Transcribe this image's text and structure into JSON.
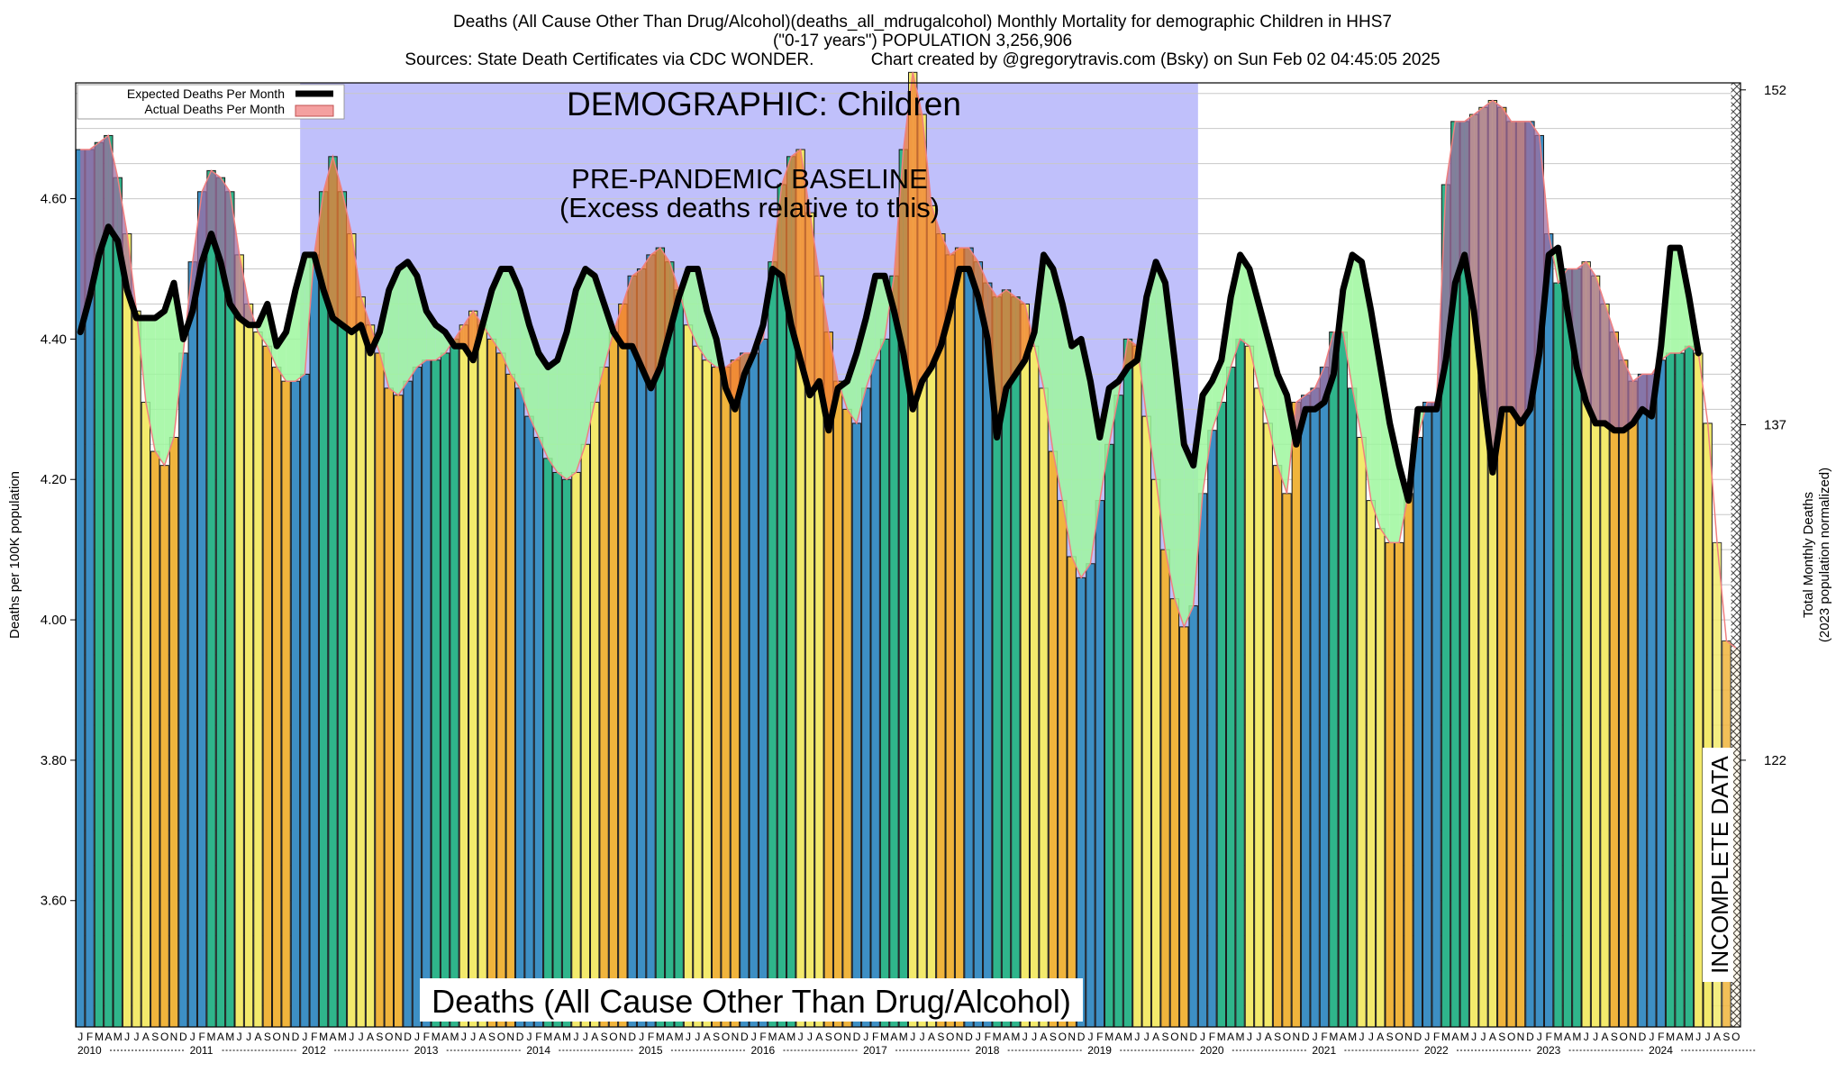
{
  "header": {
    "line1": "Deaths (All Cause Other Than Drug/Alcohol)(deaths_all_mdrugalcohol) Monthly Mortality for demographic Children in HHS7",
    "line2": "(\"0-17 years\") POPULATION 3,256,906",
    "line3": "Sources: State Death Certificates via CDC WONDER.            Chart created by @gregorytravis.com (Bsky) on Sun Feb 02 04:45:05 2025"
  },
  "legend": {
    "expected": "Expected Deaths Per Month",
    "actual": "Actual Deaths Per Month"
  },
  "annotations": {
    "demographic": "DEMOGRAPHIC: Children",
    "baseline_1": "PRE-PANDEMIC BASELINE",
    "baseline_2": "(Excess deaths relative to this)",
    "cause": "Deaths (All Cause Other Than Drug/Alcohol)",
    "incomplete": "INCOMPLETE DATA"
  },
  "colors": {
    "winter_bar": "#3d8fc4",
    "spring_bar": "#2fb58b",
    "summer_bar": "#f3ea6c",
    "fall_bar": "#f0b43c",
    "excess_fill": "#a06ea0",
    "excess_fill_alt": "#f07d34",
    "deficit_fill": "#9ef79e",
    "baseline_region": "#c0c0fb",
    "expected_line": "#000000",
    "actual_line": "#f08080"
  },
  "chart_data": {
    "type": "bar",
    "ylabel": "Deaths per 100K population",
    "ylabel_right": "Total Monthly Deaths",
    "ylabel_right_2": "(2023 population normalized)",
    "ylim": [
      3.42,
      4.765
    ],
    "yticks": [
      "3.60",
      "3.80",
      "4.00",
      "4.20",
      "4.40",
      "4.60"
    ],
    "ytick_values": [
      3.6,
      3.8,
      4.0,
      4.2,
      4.4,
      4.6
    ],
    "right_ticks": [
      "122",
      "137",
      "152"
    ],
    "right_tick_values": [
      3.8,
      4.278,
      4.755
    ],
    "month_letters": [
      "J",
      "F",
      "M",
      "A",
      "M",
      "J",
      "J",
      "A",
      "S",
      "O",
      "N",
      "D"
    ],
    "years": [
      "2010",
      "2011",
      "2012",
      "2013",
      "2014",
      "2015",
      "2016",
      "2017",
      "2018",
      "2019",
      "2020",
      "2021",
      "2022",
      "2023",
      "2024"
    ],
    "baseline_start": "2012-01",
    "baseline_end": "2019-12",
    "incomplete_from": "2024-08",
    "series": [
      {
        "name": "Actual Deaths Per Month",
        "values": [
          4.67,
          4.67,
          4.68,
          4.69,
          4.63,
          4.55,
          4.44,
          4.31,
          4.24,
          4.22,
          4.26,
          4.38,
          4.51,
          4.61,
          4.64,
          4.63,
          4.61,
          4.52,
          4.45,
          4.41,
          4.39,
          4.36,
          4.34,
          4.34,
          4.35,
          4.52,
          4.61,
          4.66,
          4.61,
          4.55,
          4.46,
          4.42,
          4.38,
          4.33,
          4.32,
          4.34,
          4.36,
          4.37,
          4.37,
          4.38,
          4.4,
          4.42,
          4.44,
          4.42,
          4.4,
          4.38,
          4.35,
          4.33,
          4.29,
          4.26,
          4.23,
          4.21,
          4.2,
          4.21,
          4.25,
          4.31,
          4.36,
          4.41,
          4.45,
          4.49,
          4.5,
          4.52,
          4.53,
          4.51,
          4.47,
          4.42,
          4.39,
          4.37,
          4.36,
          4.36,
          4.37,
          4.38,
          4.38,
          4.4,
          4.51,
          4.62,
          4.66,
          4.67,
          4.58,
          4.49,
          4.41,
          4.34,
          4.3,
          4.28,
          4.33,
          4.37,
          4.4,
          4.49,
          4.67,
          4.78,
          4.72,
          4.59,
          4.55,
          4.52,
          4.53,
          4.53,
          4.51,
          4.48,
          4.46,
          4.47,
          4.46,
          4.45,
          4.39,
          4.33,
          4.24,
          4.17,
          4.09,
          4.06,
          4.08,
          4.17,
          4.25,
          4.32,
          4.4,
          4.39,
          4.29,
          4.2,
          4.1,
          4.03,
          3.99,
          4.02,
          4.18,
          4.27,
          4.31,
          4.36,
          4.4,
          4.39,
          4.33,
          4.28,
          4.22,
          4.18,
          4.31,
          4.32,
          4.33,
          4.36,
          4.41,
          4.41,
          4.33,
          4.26,
          4.17,
          4.13,
          4.11,
          4.11,
          4.18,
          4.26,
          4.31,
          4.31,
          4.62,
          4.71,
          4.71,
          4.72,
          4.73,
          4.74,
          4.73,
          4.71,
          4.71,
          4.71,
          4.69,
          4.55,
          4.48,
          4.5,
          4.5,
          4.51,
          4.49,
          4.45,
          4.41,
          4.37,
          4.34,
          4.35,
          4.35,
          4.37,
          4.38,
          4.38,
          4.39,
          4.38,
          4.28,
          4.11,
          3.97,
          3.96
        ]
      },
      {
        "name": "Expected Deaths Per Month",
        "values": [
          4.41,
          4.46,
          4.52,
          4.56,
          4.54,
          4.47,
          4.43,
          4.43,
          4.43,
          4.44,
          4.48,
          4.4,
          4.44,
          4.51,
          4.55,
          4.51,
          4.45,
          4.43,
          4.42,
          4.42,
          4.45,
          4.39,
          4.41,
          4.47,
          4.52,
          4.52,
          4.47,
          4.43,
          4.42,
          4.41,
          4.42,
          4.38,
          4.41,
          4.47,
          4.5,
          4.51,
          4.49,
          4.44,
          4.42,
          4.41,
          4.39,
          4.39,
          4.37,
          4.42,
          4.47,
          4.5,
          4.5,
          4.47,
          4.42,
          4.38,
          4.36,
          4.37,
          4.41,
          4.47,
          4.5,
          4.49,
          4.45,
          4.41,
          4.39,
          4.39,
          4.36,
          4.33,
          4.36,
          4.41,
          4.46,
          4.5,
          4.5,
          4.44,
          4.4,
          4.33,
          4.3,
          4.35,
          4.38,
          4.42,
          4.5,
          4.49,
          4.42,
          4.37,
          4.32,
          4.34,
          4.27,
          4.33,
          4.34,
          4.38,
          4.43,
          4.49,
          4.49,
          4.44,
          4.38,
          4.3,
          4.34,
          4.36,
          4.39,
          4.44,
          4.5,
          4.5,
          4.46,
          4.4,
          4.26,
          4.33,
          4.35,
          4.37,
          4.41,
          4.52,
          4.5,
          4.45,
          4.39,
          4.4,
          4.34,
          4.26,
          4.33,
          4.34,
          4.36,
          4.37,
          4.46,
          4.51,
          4.48,
          4.37,
          4.25,
          4.22,
          4.32,
          4.34,
          4.37,
          4.46,
          4.52,
          4.5,
          4.45,
          4.4,
          4.35,
          4.32,
          4.25,
          4.3,
          4.3,
          4.31,
          4.35,
          4.47,
          4.52,
          4.51,
          4.44,
          4.36,
          4.28,
          4.22,
          4.17,
          4.3,
          4.3,
          4.3,
          4.37,
          4.48,
          4.52,
          4.44,
          4.32,
          4.21,
          4.3,
          4.3,
          4.28,
          4.3,
          4.38,
          4.52,
          4.53,
          4.44,
          4.36,
          4.31,
          4.28,
          4.28,
          4.27,
          4.27,
          4.28,
          4.3,
          4.29,
          4.39,
          4.53,
          4.53,
          4.46,
          4.38
        ]
      }
    ]
  }
}
